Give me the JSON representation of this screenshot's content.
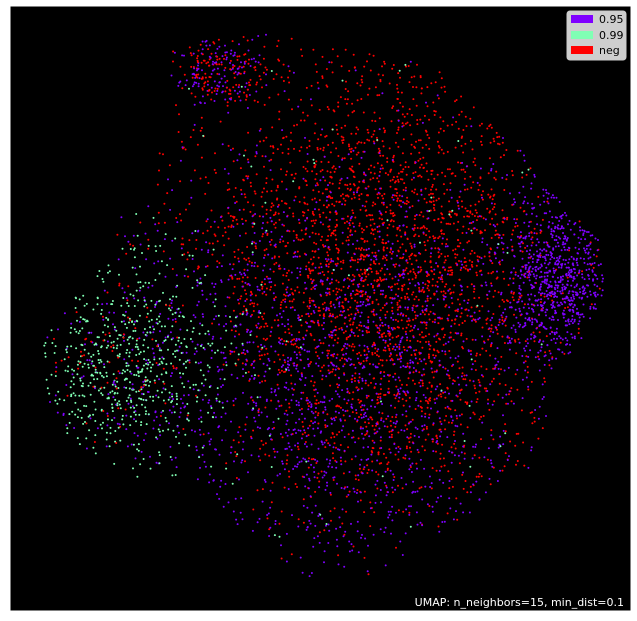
{
  "chart_data": {
    "type": "scatter",
    "title": "",
    "xlabel": "",
    "ylabel": "",
    "background": "#000000",
    "grid": false,
    "legend_position": "top-right",
    "annotation": "UMAP: n_neighbors=15, min_dist=0.1",
    "series": [
      {
        "name": "0.95",
        "color": "#7f00ff"
      },
      {
        "name": "0.99",
        "color": "#80ffb4"
      },
      {
        "name": "neg",
        "color": "#ff0000"
      }
    ]
  }
}
